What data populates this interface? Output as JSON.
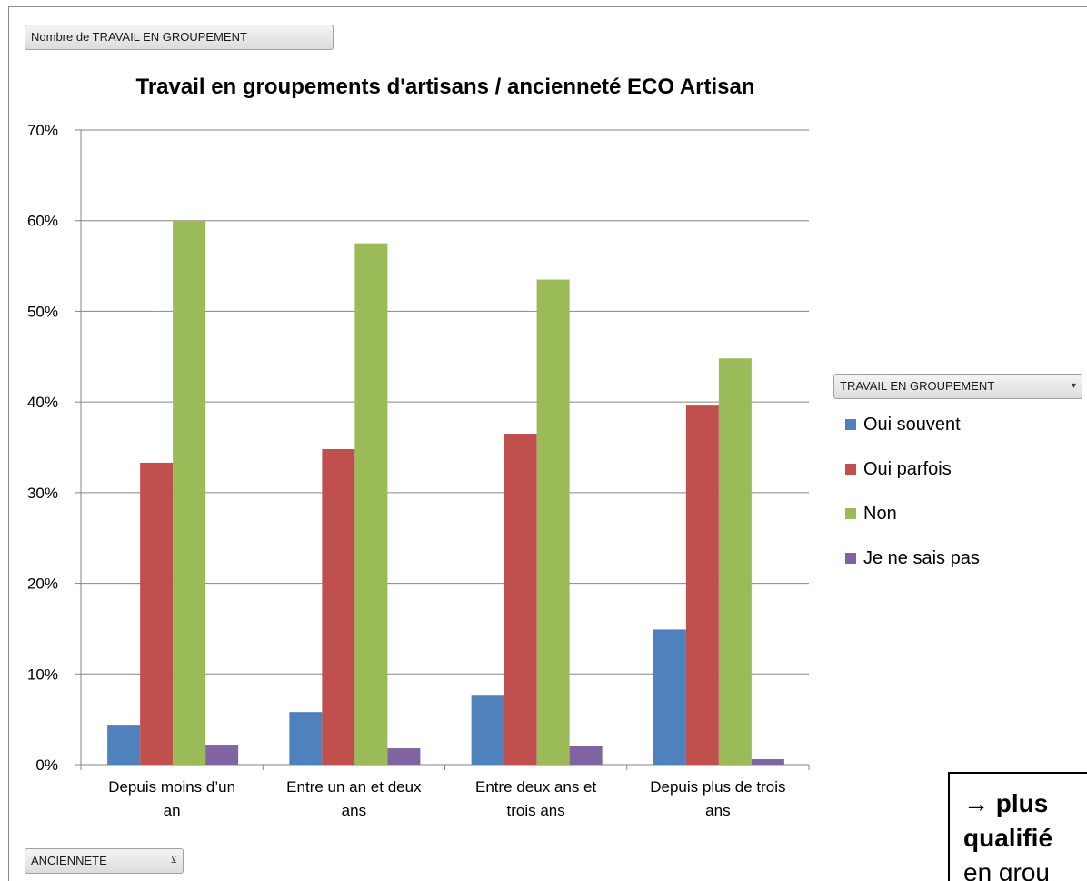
{
  "buttons": {
    "value_field": "Nombre de TRAVAIL EN GROUPEMENT",
    "legend_field": "TRAVAIL EN GROUPEMENT",
    "legend_field_indicator": "▾",
    "axis_field": "ANCIENNETE",
    "axis_field_indicator": "⊻"
  },
  "callout": {
    "line1": "→ plus",
    "line2": "qualifié",
    "line3": "en grou"
  },
  "chart_data": {
    "type": "bar",
    "title": "Travail en groupements d'artisans / ancienneté ECO Artisan",
    "xlabel": "",
    "ylabel": "",
    "ylim": [
      0,
      0.7
    ],
    "yticks": [
      "0%",
      "10%",
      "20%",
      "30%",
      "40%",
      "50%",
      "60%",
      "70%"
    ],
    "grid": true,
    "legend_position": "right",
    "categories": [
      [
        "Depuis moins d’un",
        "an"
      ],
      [
        "Entre un an et deux",
        "ans"
      ],
      [
        "Entre deux ans et",
        "trois ans"
      ],
      [
        "Depuis plus de trois",
        "ans"
      ]
    ],
    "series": [
      {
        "name": "Oui souvent",
        "color": "#4f81bd",
        "values": [
          0.044,
          0.058,
          0.077,
          0.149
        ]
      },
      {
        "name": "Oui parfois",
        "color": "#c0504d",
        "values": [
          0.333,
          0.348,
          0.365,
          0.396
        ]
      },
      {
        "name": "Non",
        "color": "#9bbb59",
        "values": [
          0.6,
          0.575,
          0.535,
          0.448
        ]
      },
      {
        "name": "Je ne sais pas",
        "color": "#8064a2",
        "values": [
          0.022,
          0.018,
          0.021,
          0.006
        ]
      }
    ]
  }
}
